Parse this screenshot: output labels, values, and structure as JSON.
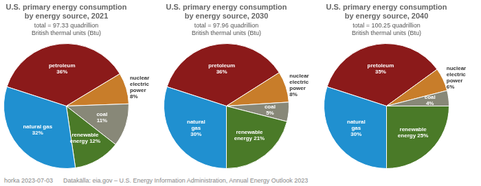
{
  "chart_data": [
    {
      "type": "pie",
      "title": "U.S. primary energy consumption\nby energy source, 2021",
      "subtitle": "total = 97.33 quadrillion\nBritish thermal units (Btu)",
      "values": [
        36,
        8,
        11,
        12,
        32
      ],
      "value_labels": [
        "petroleum\n36%",
        "nuclear\nelectric\npower\n8%",
        "coal\n11%",
        "renewable\nenergy 12%",
        "natural gas\n32%"
      ],
      "colors": [
        "#8B1A1A",
        "#C87D2A",
        "#888878",
        "#4A7A28",
        "#2090D0"
      ],
      "data_labels": true
    },
    {
      "type": "pie",
      "title": "U.S. primary energy consumption\nby energy source, 2030",
      "subtitle": "total = 97.96 quadrillion\nBritish thermal units (Btu)",
      "values": [
        36,
        8,
        5,
        21,
        30
      ],
      "value_labels": [
        "pretoleum\n36%",
        "nuclear\nelectric\npower\n8%",
        "coal\n5%",
        "renewable\nenergy 21%",
        "natural\ngas\n30%"
      ],
      "colors": [
        "#8B1A1A",
        "#C87D2A",
        "#888878",
        "#4A7A28",
        "#2090D0"
      ],
      "data_labels": true
    },
    {
      "type": "pie",
      "title": "U.S. primary energy consumption\nby energy source, 2040",
      "subtitle": "total = 100.25 quadrillion\nBritish thermal units (Btu)",
      "values": [
        35,
        6,
        4,
        25,
        30
      ],
      "value_labels": [
        "pretoleum\n35%",
        "nuclear\nelectric\npower\n6%",
        "coal\n4%",
        "renewable\nenergy 25%",
        "natural\ngas\n30%"
      ],
      "colors": [
        "#8B1A1A",
        "#C87D2A",
        "#888878",
        "#4A7A28",
        "#2090D0"
      ],
      "data_labels": true
    }
  ],
  "footer": "horka 2023-07-03      Datakälla: eia.gov – U.S. Energy Information Administration, Annual Energy Outlook 2023"
}
